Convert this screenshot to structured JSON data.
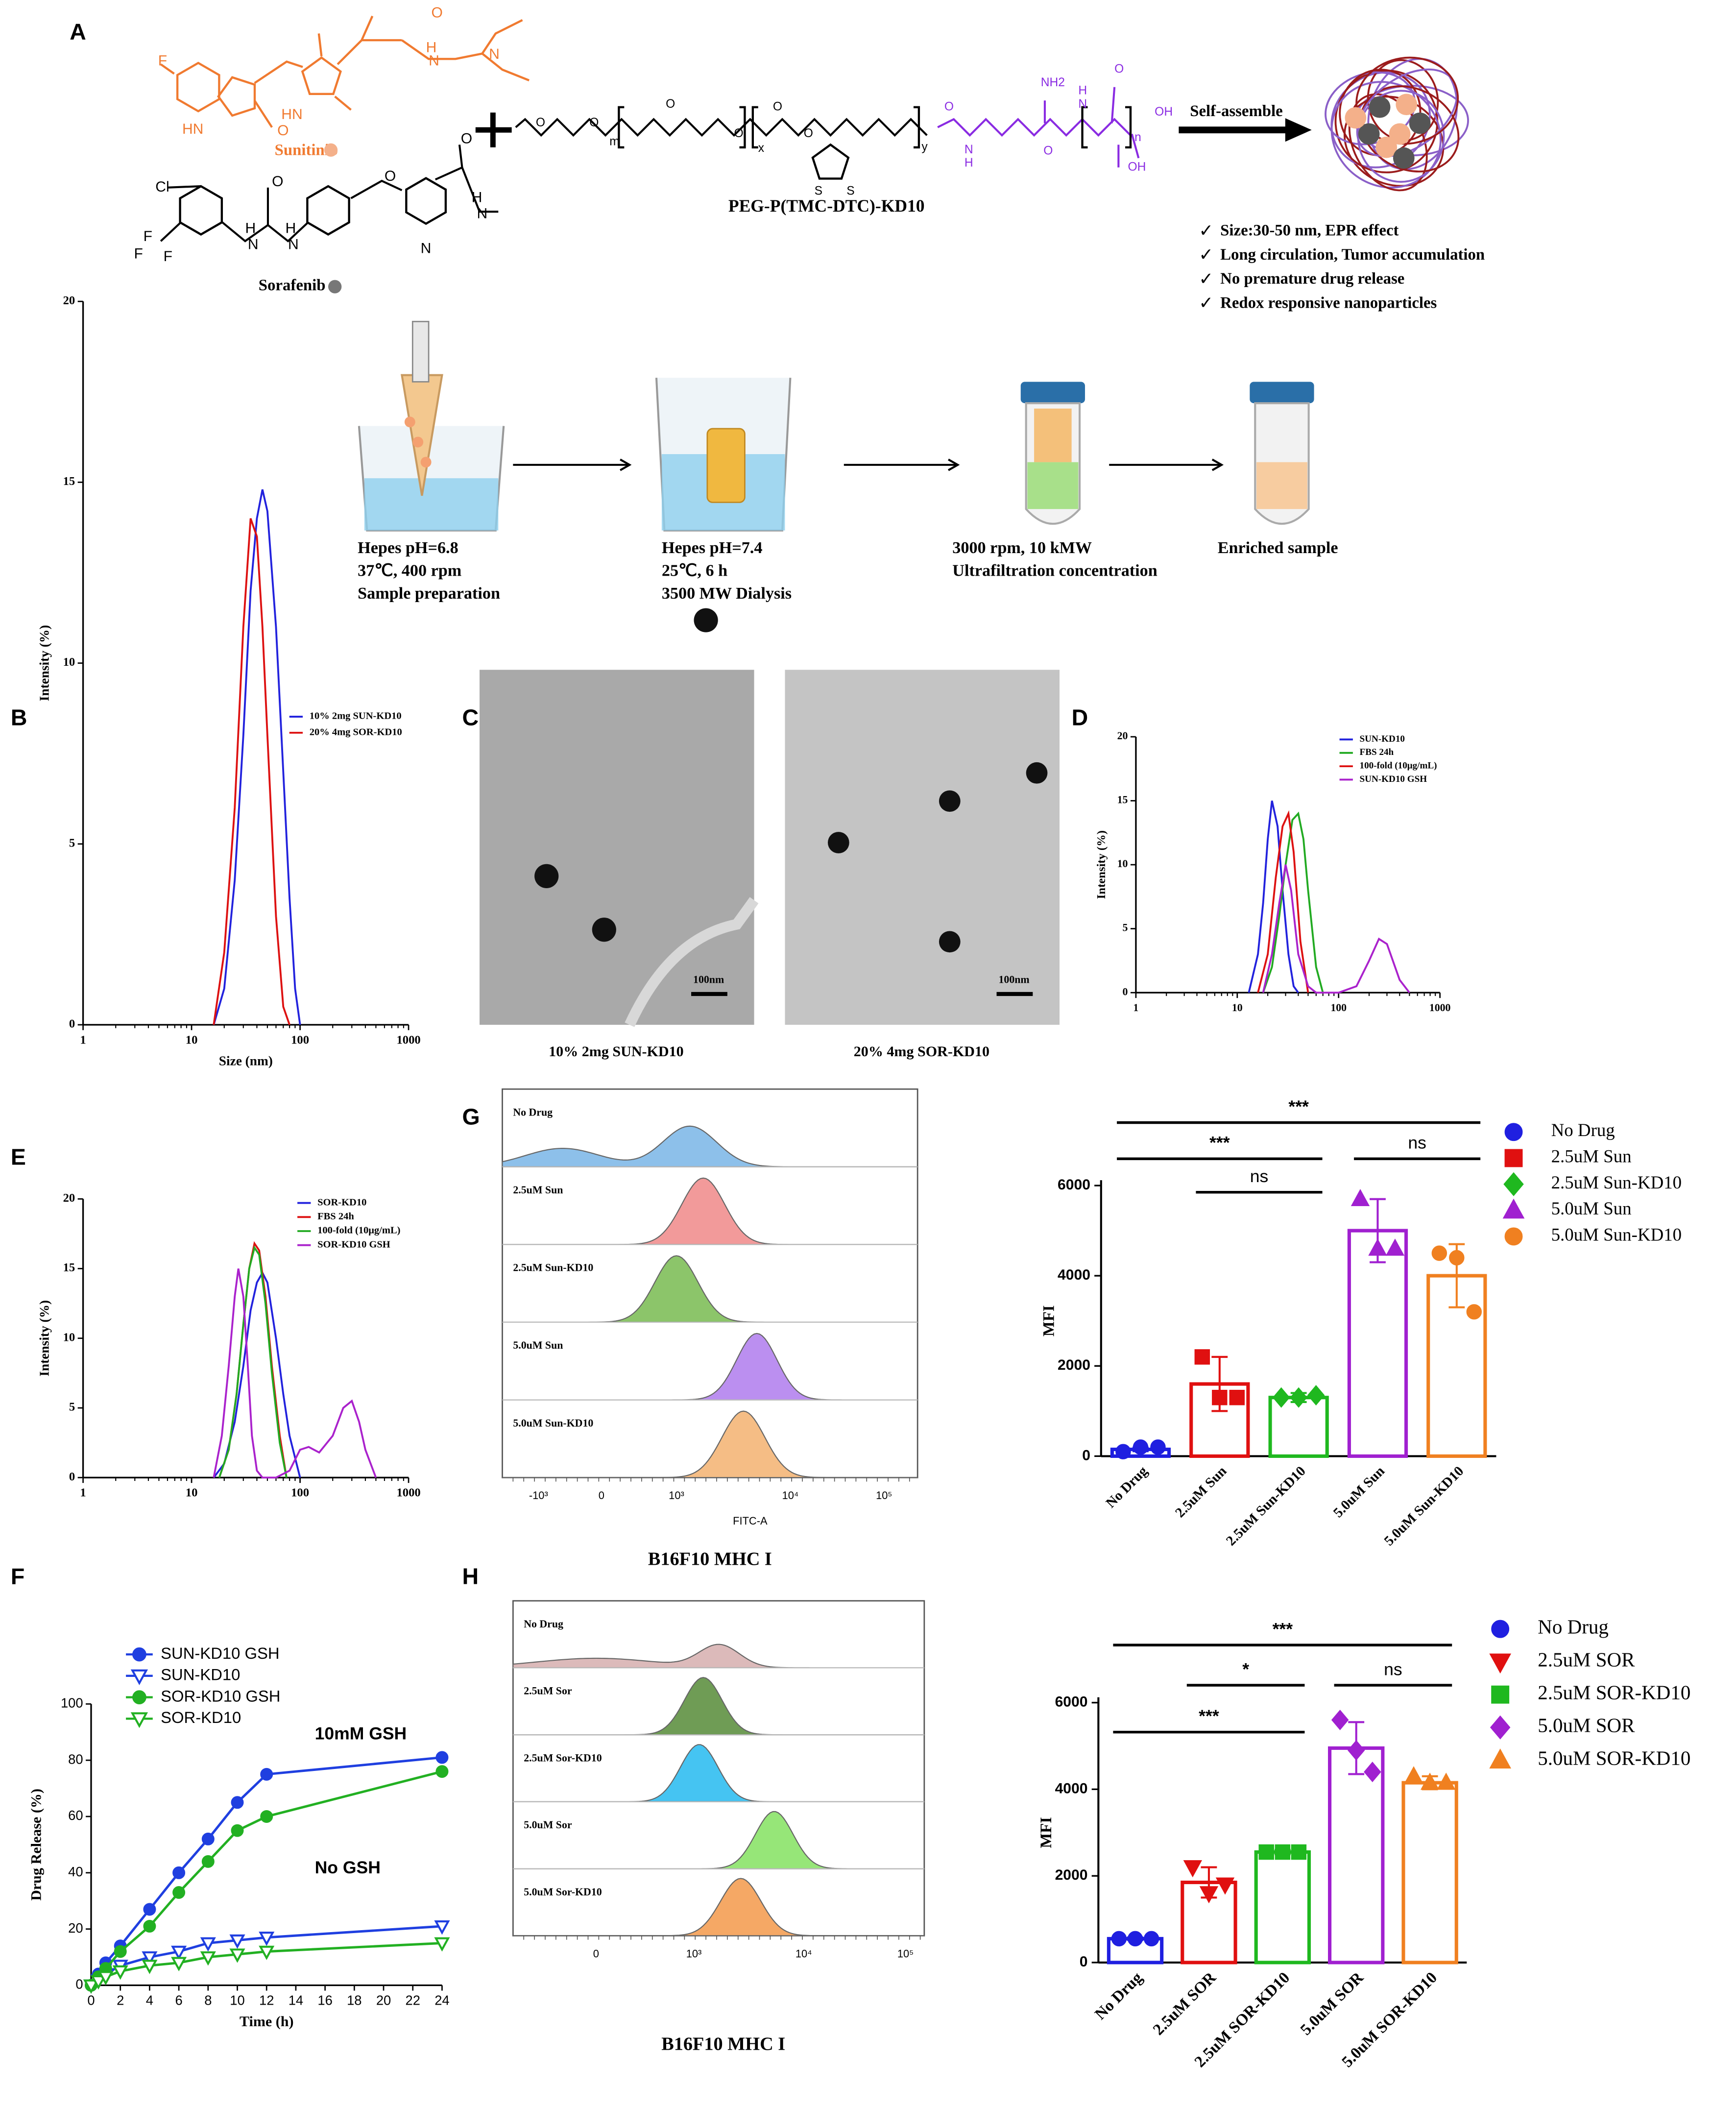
{
  "panel_labels": [
    "A",
    "B",
    "C",
    "D",
    "E",
    "F",
    "G",
    "H"
  ],
  "panel_a": {
    "sunitinib": "Sunitinib",
    "sorafenib": "Sorafenib",
    "polymer": "PEG-P(TMC-DTC)-KD10",
    "assemble": "Self-assemble",
    "sunitinib_atoms": [
      "F",
      "HN",
      "O",
      "HN",
      "O",
      "H",
      "N",
      "N"
    ],
    "sorafenib_atoms": [
      "Cl",
      "F",
      "F",
      "F",
      "H",
      "N",
      "O",
      "H",
      "N",
      "O",
      "O",
      "H",
      "N",
      "N"
    ],
    "polymer_atoms": [
      "O",
      "O",
      "m",
      "O",
      "O",
      "x",
      "O",
      "O",
      "y",
      "S",
      "S",
      "O",
      "H",
      "N",
      "NH2",
      "H",
      "N",
      "O",
      "n",
      "OH",
      "O",
      "OH"
    ],
    "features": [
      "Size:30-50 nm, EPR effect",
      "Long circulation, Tumor accumulation",
      "No premature drug release",
      "Redox responsive nanoparticles"
    ],
    "steps": [
      [
        "Hepes pH=6.8",
        "37℃, 400 rpm",
        "Sample preparation"
      ],
      [
        "Hepes pH=7.4",
        "25℃, 6 h",
        "3500 MW Dialysis"
      ],
      [
        "3000 rpm, 10 kMW",
        "Ultrafiltration concentration"
      ],
      [
        "Enriched sample"
      ]
    ]
  },
  "panel_c": {
    "scale_bar": "100nm",
    "captions": [
      "10% 2mg SUN-KD10",
      "20% 4mg SOR-KD10"
    ]
  },
  "panel_g_hist": {
    "labels": [
      "No Drug",
      "2.5uM Sun",
      "2.5uM Sun-KD10",
      "5.0uM Sun",
      "5.0uM Sun-KD10"
    ],
    "colors": [
      "#8dc0ea",
      "#f29a9a",
      "#8cc56a",
      "#bb8ff0",
      "#f5bd85"
    ],
    "xaxis": [
      "-10³",
      "0",
      "10³",
      "10⁴",
      "10⁵"
    ],
    "xlabel": "FITC-A",
    "caption": "B16F10 MHC I"
  },
  "panel_h_hist": {
    "labels": [
      "No Drug",
      "2.5uM Sor",
      "2.5uM Sor-KD10",
      "5.0uM Sor",
      "5.0uM Sor-KD10"
    ],
    "colors": [
      "#dcbaba",
      "#6f9c55",
      "#45c4f2",
      "#96e678",
      "#f5a865"
    ],
    "xaxis": [
      "0",
      "10³",
      "10⁴",
      "10⁵"
    ],
    "caption": "B16F10  MHC I"
  },
  "chart_data": [
    {
      "type": "line",
      "xscale": "log",
      "ylabel": "Intensity (%)",
      "xlabel": "Size (nm)",
      "xlim": [
        1,
        1000
      ],
      "ylim": [
        0,
        20
      ],
      "xticks": [
        1,
        10,
        100,
        1000
      ],
      "yticks": [
        0,
        5,
        10,
        15,
        20
      ],
      "series": [
        {
          "name": "10% 2mg SUN-KD10",
          "color": "#2222dd",
          "x": [
            16,
            20,
            25,
            30,
            35,
            40,
            45,
            50,
            60,
            70,
            80,
            90,
            100
          ],
          "values": [
            0,
            1,
            4,
            8,
            12,
            14,
            14.8,
            14.2,
            11,
            7,
            3.5,
            1,
            0
          ]
        },
        {
          "name": "20% 4mg SOR-KD10",
          "color": "#dd1111",
          "x": [
            16,
            20,
            25,
            30,
            35,
            40,
            45,
            50,
            60,
            70,
            80
          ],
          "values": [
            0,
            2,
            6,
            11,
            14,
            13.5,
            11,
            8,
            3,
            0.5,
            0
          ]
        }
      ]
    },
    {
      "type": "line",
      "xscale": "log",
      "ylabel": "Intensity (%)",
      "xlim": [
        1,
        1000
      ],
      "ylim": [
        0,
        20
      ],
      "xticks": [
        1,
        10,
        100,
        1000
      ],
      "yticks": [
        0,
        5,
        10,
        15,
        20
      ],
      "series": [
        {
          "name": "SUN-KD10",
          "color": "#2222dd",
          "x": [
            13,
            16,
            18,
            20,
            22,
            25,
            28,
            32,
            36,
            40
          ],
          "values": [
            0,
            3,
            7,
            12,
            15,
            13,
            8,
            3,
            0.5,
            0
          ]
        },
        {
          "name": "FBS 24h",
          "color": "#22aa22",
          "x": [
            18,
            22,
            26,
            30,
            35,
            40,
            45,
            50,
            60,
            70
          ],
          "values": [
            0,
            2,
            6,
            10,
            13.5,
            14,
            12,
            8,
            2,
            0
          ]
        },
        {
          "name": "100-fold (10μg/mL)",
          "color": "#dd1111",
          "x": [
            16,
            20,
            24,
            28,
            32,
            36,
            42,
            50
          ],
          "values": [
            0,
            3,
            9,
            13,
            14,
            11,
            4,
            0
          ]
        },
        {
          "name": "SUN-KD10 GSH",
          "color": "#aa22cc",
          "x": [
            18,
            22,
            26,
            30,
            34,
            40,
            50,
            60,
            100,
            150,
            200,
            250,
            300,
            400,
            500
          ],
          "values": [
            0,
            3,
            7,
            10,
            8,
            3,
            0.5,
            0,
            0,
            0.5,
            2.5,
            4.2,
            3.8,
            1,
            0
          ]
        }
      ]
    },
    {
      "type": "line",
      "xscale": "log",
      "ylabel": "Intensity (%)",
      "xlim": [
        1,
        1000
      ],
      "ylim": [
        0,
        20
      ],
      "xticks": [
        1,
        10,
        100,
        1000
      ],
      "yticks": [
        0,
        5,
        10,
        15,
        20
      ],
      "series": [
        {
          "name": "SOR-KD10",
          "color": "#2222dd",
          "x": [
            16,
            20,
            25,
            30,
            35,
            40,
            45,
            50,
            60,
            70,
            80,
            100
          ],
          "values": [
            0,
            1,
            4,
            8,
            12,
            14,
            14.7,
            14,
            10,
            6,
            3,
            0
          ]
        },
        {
          "name": "FBS 24h",
          "color": "#dd1111",
          "x": [
            18,
            22,
            26,
            30,
            34,
            38,
            42,
            48,
            55,
            65,
            75
          ],
          "values": [
            0,
            2,
            6,
            11,
            15,
            16.8,
            16.3,
            13,
            8,
            3,
            0
          ]
        },
        {
          "name": "100-fold (10μg/mL)",
          "color": "#22aa22",
          "x": [
            18,
            22,
            26,
            30,
            34,
            38,
            42,
            48,
            55,
            65,
            75
          ],
          "values": [
            0,
            2,
            6,
            11,
            15,
            16.5,
            16,
            12.5,
            7.5,
            2.5,
            0
          ]
        },
        {
          "name": "SOR-KD10 GSH",
          "color": "#aa22cc",
          "x": [
            16,
            19,
            22,
            25,
            27,
            30,
            33,
            36,
            40,
            45,
            50,
            60,
            80,
            100,
            120,
            150,
            200,
            250,
            300,
            350,
            400,
            500
          ],
          "values": [
            0,
            3,
            8,
            13,
            15,
            13,
            8,
            3,
            0.5,
            0,
            0,
            0,
            0.5,
            2,
            2.2,
            1.8,
            3,
            5,
            5.5,
            4,
            2,
            0
          ]
        }
      ]
    },
    {
      "type": "line",
      "xlabel": "Time (h)",
      "ylabel": "Drug Release (%)",
      "xlim": [
        0,
        24
      ],
      "ylim": [
        0,
        100
      ],
      "xticks": [
        0,
        2,
        4,
        6,
        8,
        10,
        12,
        14,
        16,
        18,
        20,
        22,
        24
      ],
      "yticks": [
        0,
        20,
        40,
        60,
        80,
        100
      ],
      "x": [
        0,
        0.5,
        1,
        2,
        4,
        6,
        8,
        10,
        12,
        24
      ],
      "annotations": [
        "10mM GSH",
        "No GSH"
      ],
      "series": [
        {
          "name": "SUN-KD10 GSH",
          "color": "#1f3fe0",
          "marker": "circle",
          "filled": true,
          "values": [
            0,
            4,
            8,
            14,
            27,
            40,
            52,
            65,
            75,
            81
          ]
        },
        {
          "name": "SUN-KD10",
          "color": "#1f3fe0",
          "marker": "triangle-down",
          "filled": false,
          "values": [
            0,
            2,
            4,
            7,
            10,
            12,
            15,
            16,
            17,
            21
          ]
        },
        {
          "name": "SOR-KD10 GSH",
          "color": "#22b022",
          "marker": "circle",
          "filled": true,
          "values": [
            0,
            3,
            6,
            12,
            21,
            33,
            44,
            55,
            60,
            76
          ]
        },
        {
          "name": "SOR-KD10",
          "color": "#22b022",
          "marker": "triangle-down",
          "filled": false,
          "values": [
            0,
            1.5,
            3,
            5,
            7,
            8,
            10,
            11,
            12,
            15
          ]
        }
      ]
    },
    {
      "type": "bar",
      "ylabel": "MFI",
      "categories": [
        "No Drug",
        "2.5uM Sun",
        "2.5uM Sun-KD10",
        "5.0uM Sun",
        "5.0uM Sun-KD10"
      ],
      "values": [
        150,
        1600,
        1300,
        5000,
        4000
      ],
      "errors": [
        40,
        600,
        100,
        700,
        700
      ],
      "points": [
        [
          100,
          200,
          200
        ],
        [
          2200,
          1300,
          1300
        ],
        [
          1300,
          1300,
          1350
        ],
        [
          5700,
          4600,
          4600
        ],
        [
          4500,
          4400,
          3200
        ]
      ],
      "colors": [
        "#1f1fe0",
        "#e01010",
        "#1fb81f",
        "#a020d0",
        "#f08020"
      ],
      "markers": [
        "circle",
        "square",
        "diamond",
        "triangle",
        "circle"
      ],
      "ylim": [
        0,
        6000
      ],
      "yticks": [
        0,
        2000,
        4000,
        6000
      ],
      "annotations": [
        "***",
        "***",
        "ns",
        "ns"
      ]
    },
    {
      "type": "bar",
      "ylabel": "MFI",
      "categories": [
        "No Drug",
        "2.5uM SOR",
        "2.5uM SOR-KD10",
        "5.0uM SOR",
        "5.0uM SOR-KD10"
      ],
      "values": [
        550,
        1850,
        2550,
        4950,
        4150
      ],
      "errors": [
        30,
        350,
        50,
        600,
        150
      ],
      "points": [
        [
          550,
          550,
          550
        ],
        [
          2200,
          1600,
          1800
        ],
        [
          2550,
          2550,
          2550
        ],
        [
          5600,
          4900,
          4400
        ],
        [
          4300,
          4150,
          4150
        ]
      ],
      "colors": [
        "#1f1fe0",
        "#e01010",
        "#1fb81f",
        "#a020d0",
        "#f08020"
      ],
      "markers": [
        "circle",
        "triangle-down",
        "square",
        "diamond",
        "triangle"
      ],
      "ylim": [
        0,
        6000
      ],
      "yticks": [
        0,
        2000,
        4000,
        6000
      ],
      "annotations": [
        "***",
        "*",
        "ns",
        "***"
      ]
    }
  ]
}
